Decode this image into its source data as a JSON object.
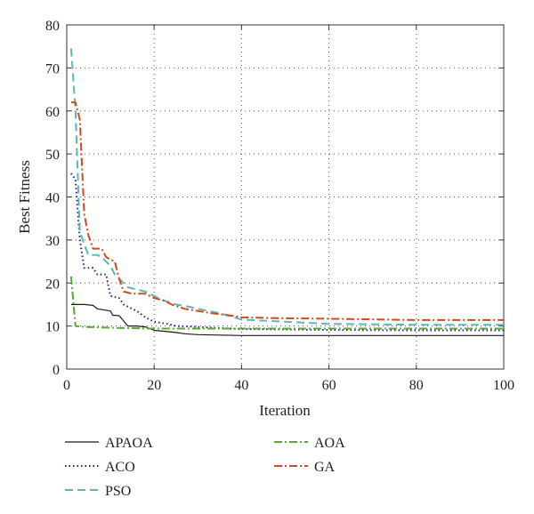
{
  "chart_data": {
    "type": "line",
    "title": "",
    "xlabel": "Iteration",
    "ylabel": "Best Fitness",
    "xlim": [
      0,
      100
    ],
    "ylim": [
      0,
      80
    ],
    "xticks": [
      0,
      20,
      40,
      60,
      80,
      100
    ],
    "yticks": [
      0,
      10,
      20,
      30,
      40,
      50,
      60,
      70,
      80
    ],
    "grid": true,
    "legend_placement": "bottom, outside plot, two columns",
    "series": [
      {
        "name": "APAOA",
        "color": "#1a1a1a",
        "dash": "solid",
        "points": [
          [
            1,
            15
          ],
          [
            4,
            15
          ],
          [
            6,
            14.8
          ],
          [
            7,
            14
          ],
          [
            10,
            13.5
          ],
          [
            10.5,
            12.5
          ],
          [
            12,
            12.4
          ],
          [
            14,
            10
          ],
          [
            16,
            10
          ],
          [
            18,
            9.8
          ],
          [
            20,
            9
          ],
          [
            22,
            8.8
          ],
          [
            25,
            8.5
          ],
          [
            27,
            8.2
          ],
          [
            30,
            8
          ],
          [
            35,
            7.9
          ],
          [
            40,
            7.8
          ],
          [
            60,
            7.8
          ],
          [
            80,
            7.8
          ],
          [
            100,
            7.8
          ]
        ]
      },
      {
        "name": "ACO",
        "color": "#1f1f8f",
        "dash": "dotted",
        "points": [
          [
            1,
            45.5
          ],
          [
            2,
            44
          ],
          [
            3,
            30
          ],
          [
            4,
            23.5
          ],
          [
            6,
            23.5
          ],
          [
            7,
            22
          ],
          [
            9,
            22
          ],
          [
            10,
            17
          ],
          [
            12,
            16.5
          ],
          [
            13,
            15
          ],
          [
            15,
            14
          ],
          [
            16,
            13.5
          ],
          [
            18,
            12
          ],
          [
            20,
            11
          ],
          [
            23,
            10.5
          ],
          [
            25,
            10
          ],
          [
            30,
            9.8
          ],
          [
            35,
            9.5
          ],
          [
            40,
            9.3
          ],
          [
            50,
            9.2
          ],
          [
            60,
            9.1
          ],
          [
            80,
            9
          ],
          [
            100,
            9
          ]
        ]
      },
      {
        "name": "PSO",
        "color": "#5bb8b8",
        "dash": "dashed",
        "points": [
          [
            1,
            74.5
          ],
          [
            2,
            60
          ],
          [
            3,
            32
          ],
          [
            4,
            29
          ],
          [
            5,
            26.5
          ],
          [
            7,
            26.5
          ],
          [
            8,
            26
          ],
          [
            10,
            24
          ],
          [
            11,
            22
          ],
          [
            12,
            21
          ],
          [
            14,
            19
          ],
          [
            16,
            18.5
          ],
          [
            18,
            18
          ],
          [
            20,
            17
          ],
          [
            22,
            16
          ],
          [
            25,
            15
          ],
          [
            28,
            14.5
          ],
          [
            30,
            14
          ],
          [
            35,
            13
          ],
          [
            40,
            11.5
          ],
          [
            50,
            11
          ],
          [
            60,
            10.5
          ],
          [
            80,
            10.3
          ],
          [
            100,
            10.3
          ]
        ]
      },
      {
        "name": "AOA",
        "color": "#5aa832",
        "dash": "dashdot",
        "points": [
          [
            1,
            21.5
          ],
          [
            2,
            10
          ],
          [
            4,
            9.8
          ],
          [
            10,
            9.6
          ],
          [
            15,
            9.5
          ],
          [
            20,
            9.4
          ],
          [
            30,
            9.4
          ],
          [
            40,
            9.4
          ],
          [
            60,
            9.4
          ],
          [
            80,
            9.4
          ],
          [
            100,
            9.4
          ]
        ]
      },
      {
        "name": "GA",
        "color": "#d04a1a",
        "dash": "dashdot",
        "points": [
          [
            1,
            62
          ],
          [
            2,
            62
          ],
          [
            3,
            58
          ],
          [
            4,
            36
          ],
          [
            5,
            31
          ],
          [
            6,
            28
          ],
          [
            8,
            28
          ],
          [
            9,
            26
          ],
          [
            11,
            25
          ],
          [
            12,
            21
          ],
          [
            13,
            18
          ],
          [
            15,
            17.5
          ],
          [
            18,
            17.5
          ],
          [
            20,
            16.5
          ],
          [
            22,
            16
          ],
          [
            24,
            15
          ],
          [
            27,
            14
          ],
          [
            30,
            13.5
          ],
          [
            33,
            13
          ],
          [
            37,
            12.5
          ],
          [
            40,
            12
          ],
          [
            50,
            11.8
          ],
          [
            60,
            11.7
          ],
          [
            80,
            11.4
          ],
          [
            100,
            11.4
          ]
        ]
      }
    ]
  }
}
